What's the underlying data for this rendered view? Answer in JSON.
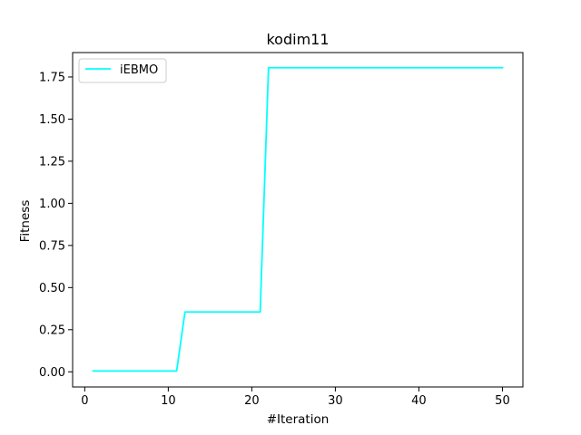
{
  "chart_data": {
    "type": "line",
    "title": "kodim11",
    "xlabel": "#Iteration",
    "ylabel": "Fitness",
    "xlim": [
      -1.45,
      52.45
    ],
    "ylim": [
      -0.09,
      1.895
    ],
    "xticks": [
      0,
      10,
      20,
      30,
      40,
      50
    ],
    "yticks": [
      0.0,
      0.25,
      0.5,
      0.75,
      1.0,
      1.25,
      1.5,
      1.75
    ],
    "ytick_labels": [
      "0.00",
      "0.25",
      "0.50",
      "0.75",
      "1.00",
      "1.25",
      "1.50",
      "1.75"
    ],
    "grid": false,
    "legend_position": "upper-left",
    "series": [
      {
        "name": "iEBMO",
        "color": "#00ffff",
        "x": [
          1,
          2,
          3,
          4,
          5,
          6,
          7,
          8,
          9,
          10,
          11,
          12,
          13,
          14,
          15,
          16,
          17,
          18,
          19,
          20,
          21,
          22,
          23,
          24,
          25,
          26,
          27,
          28,
          29,
          30,
          31,
          32,
          33,
          34,
          35,
          36,
          37,
          38,
          39,
          40,
          41,
          42,
          43,
          44,
          45,
          46,
          46,
          47,
          48,
          49,
          50
        ],
        "y": [
          0.005,
          0.005,
          0.005,
          0.005,
          0.005,
          0.005,
          0.005,
          0.005,
          0.005,
          0.005,
          0.005,
          0.355,
          0.355,
          0.355,
          0.355,
          0.355,
          0.355,
          0.355,
          0.355,
          0.355,
          0.355,
          1.805,
          1.805,
          1.805,
          1.805,
          1.805,
          1.805,
          1.805,
          1.805,
          1.805,
          1.805,
          1.805,
          1.805,
          1.805,
          1.805,
          1.805,
          1.805,
          1.805,
          1.805,
          1.805,
          1.805,
          1.805,
          1.805,
          1.805,
          1.805,
          1.805,
          1.805,
          1.805,
          1.805,
          1.805,
          1.805
        ]
      }
    ]
  }
}
